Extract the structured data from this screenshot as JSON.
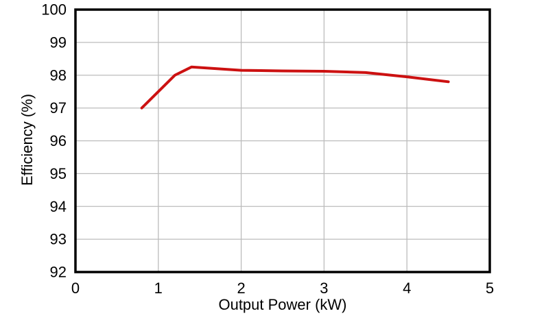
{
  "chart_data": {
    "type": "line",
    "title": "",
    "xlabel": "Output Power (kW)",
    "ylabel": "Efficiency (%)",
    "xlim": [
      0,
      5
    ],
    "ylim": [
      92,
      100
    ],
    "x_ticks": [
      0,
      1,
      2,
      3,
      4,
      5
    ],
    "y_ticks": [
      92,
      93,
      94,
      95,
      96,
      97,
      98,
      99,
      100
    ],
    "grid": true,
    "legend": "none",
    "series": [
      {
        "name": "efficiency-curve",
        "color": "#cc1111",
        "x": [
          0.8,
          1.2,
          1.4,
          2.0,
          2.5,
          3.0,
          3.5,
          4.0,
          4.5
        ],
        "y": [
          97.0,
          98.0,
          98.25,
          98.15,
          98.13,
          98.12,
          98.08,
          97.95,
          97.8
        ]
      }
    ]
  },
  "colors": {
    "line": "#cc1111",
    "grid": "#bcbcbc",
    "axis": "#000000",
    "background": "#ffffff",
    "text": "#000000"
  }
}
